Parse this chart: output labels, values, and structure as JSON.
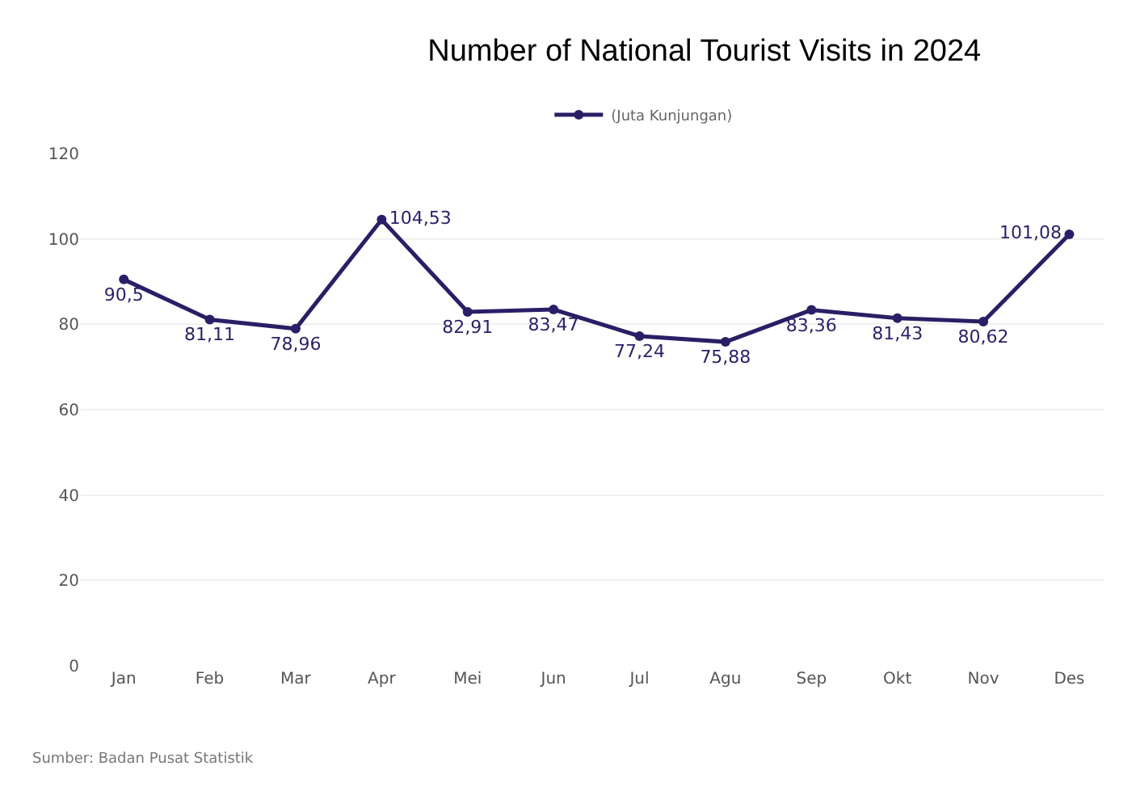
{
  "chart_data": {
    "type": "line",
    "title": "Number of National Tourist Visits in 2024",
    "categories": [
      "Jan",
      "Feb",
      "Mar",
      "Apr",
      "Mei",
      "Jun",
      "Jul",
      "Agu",
      "Sep",
      "Okt",
      "Nov",
      "Des"
    ],
    "series": [
      {
        "name": "(Juta Kunjungan)",
        "color": "#2a1f66",
        "values": [
          90.5,
          81.11,
          78.96,
          104.53,
          82.91,
          83.47,
          77.24,
          75.88,
          83.36,
          81.43,
          80.62,
          101.08
        ],
        "value_labels": [
          "90,5",
          "81,11",
          "78,96",
          "104,53",
          "82,91",
          "83,47",
          "77,24",
          "75,88",
          "83,36",
          "81,43",
          "80,62",
          "101,08"
        ]
      }
    ],
    "ylim": [
      0,
      120
    ],
    "yticks": [
      0,
      20,
      40,
      60,
      80,
      100,
      120
    ],
    "grid": "y",
    "legend": "top",
    "marker": "circle",
    "line_style": "solid",
    "annotations": [
      "Sumber: Badan Pusat Statistik"
    ]
  }
}
